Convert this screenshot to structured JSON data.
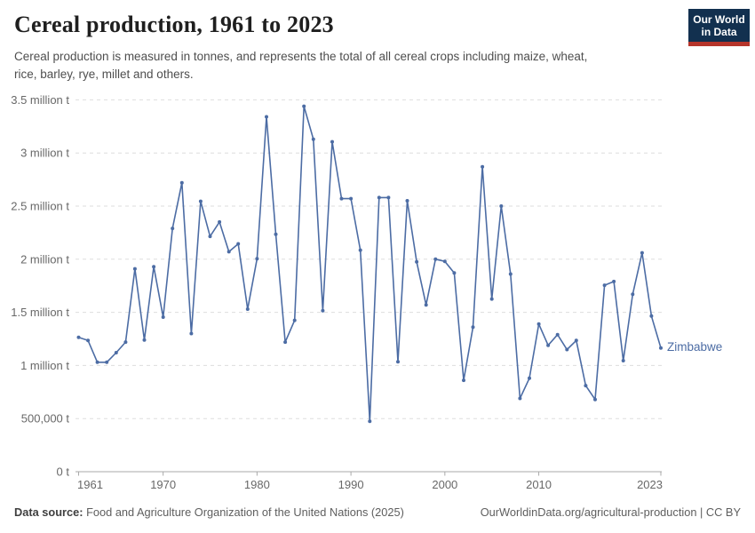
{
  "header": {
    "title": "Cereal production, 1961 to 2023",
    "subtitle_lines": [
      "Cereal production is measured in tonnes, and represents the total of all cereal crops including maize, wheat,",
      "rice, barley, rye, millet and others."
    ],
    "logo_line1": "Our World",
    "logo_line2": "in Data",
    "logo_bg_color": "#12304f",
    "logo_accent_color": "#b6352b"
  },
  "footer": {
    "source_label": "Data source:",
    "source_value": "Food and Agriculture Organization of the United Nations (2025)",
    "attribution": "OurWorldinData.org/agricultural-production | CC BY"
  },
  "chart_data": {
    "type": "line",
    "title": "Cereal production, 1961 to 2023",
    "unit": "tonnes",
    "entity": "Zimbabwe",
    "color": "#4c6ca4",
    "grid": true,
    "legend": "end-of-line-label",
    "ylim": [
      0,
      3500000
    ],
    "x": [
      1961,
      1962,
      1963,
      1964,
      1965,
      1966,
      1967,
      1968,
      1969,
      1970,
      1971,
      1972,
      1973,
      1974,
      1975,
      1976,
      1977,
      1978,
      1979,
      1980,
      1981,
      1982,
      1983,
      1984,
      1985,
      1986,
      1987,
      1988,
      1989,
      1990,
      1991,
      1992,
      1993,
      1994,
      1995,
      1996,
      1997,
      1998,
      1999,
      2000,
      2001,
      2002,
      2003,
      2004,
      2005,
      2006,
      2007,
      2008,
      2009,
      2010,
      2011,
      2012,
      2013,
      2014,
      2015,
      2016,
      2017,
      2018,
      2019,
      2020,
      2021,
      2022,
      2023
    ],
    "series": [
      {
        "name": "Zimbabwe",
        "values": [
          1265000,
          1235000,
          1030000,
          1030000,
          1120000,
          1220000,
          1910000,
          1240000,
          1930000,
          1455000,
          2290000,
          2720000,
          1300000,
          2545000,
          2215000,
          2350000,
          2070000,
          2145000,
          1530000,
          2005000,
          3340000,
          2235000,
          1220000,
          1425000,
          3440000,
          3130000,
          1515000,
          3105000,
          2570000,
          2570000,
          2085000,
          475000,
          2580000,
          2580000,
          1035000,
          2550000,
          1975000,
          1570000,
          2000000,
          1980000,
          1870000,
          860000,
          1360000,
          2870000,
          1625000,
          2500000,
          1860000,
          690000,
          880000,
          1390000,
          1190000,
          1290000,
          1150000,
          1235000,
          810000,
          680000,
          1755000,
          1790000,
          1045000,
          1670000,
          2060000,
          1465000,
          1165000
        ]
      }
    ],
    "yticks": [
      {
        "v": 0,
        "label": "0 t"
      },
      {
        "v": 500000,
        "label": "500,000 t"
      },
      {
        "v": 1000000,
        "label": "1 million t"
      },
      {
        "v": 1500000,
        "label": "1.5 million t"
      },
      {
        "v": 2000000,
        "label": "2 million t"
      },
      {
        "v": 2500000,
        "label": "2.5 million t"
      },
      {
        "v": 3000000,
        "label": "3 million t"
      },
      {
        "v": 3500000,
        "label": "3.5 million t"
      }
    ],
    "xticks": [
      {
        "v": 1961,
        "label": "1961"
      },
      {
        "v": 1970,
        "label": "1970"
      },
      {
        "v": 1980,
        "label": "1980"
      },
      {
        "v": 1990,
        "label": "1990"
      },
      {
        "v": 2000,
        "label": "2000"
      },
      {
        "v": 2010,
        "label": "2010"
      },
      {
        "v": 2023,
        "label": "2023"
      }
    ]
  }
}
